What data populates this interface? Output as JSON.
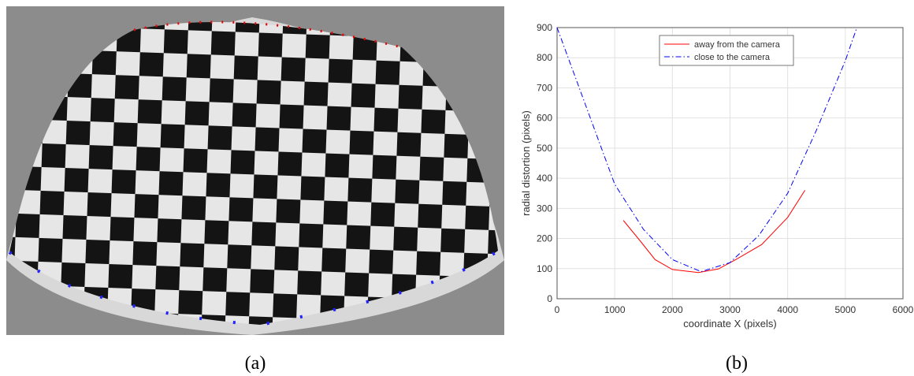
{
  "captions": [
    "(a)",
    "(b)"
  ],
  "chart_data": {
    "type": "line",
    "x_label": "coordinate X (pixels)",
    "y_label": "radial distortion (pixels)",
    "xlim": [
      0,
      6000
    ],
    "xticks": [
      0,
      1000,
      2000,
      3000,
      4000,
      5000,
      6000
    ],
    "ylim": [
      0,
      900
    ],
    "yticks": [
      0,
      100,
      200,
      300,
      400,
      500,
      600,
      700,
      800,
      900
    ],
    "grid": true,
    "legend": "top",
    "series": [
      {
        "name": "away from the camera",
        "color": "#ff0000",
        "style": "solid",
        "x": [
          1150,
          1450,
          1700,
          2000,
          2450,
          2800,
          3100,
          3550,
          4000,
          4300
        ],
        "values": [
          260,
          190,
          130,
          97,
          87,
          99,
          130,
          180,
          270,
          360
        ]
      },
      {
        "name": "close to the camera",
        "color": "#0000ff",
        "style": "dashdot",
        "x": [
          0,
          500,
          1000,
          1500,
          2000,
          2500,
          3000,
          3500,
          4000,
          4500,
          5000,
          5200
        ],
        "values": [
          900,
          640,
          380,
          230,
          130,
          90,
          120,
          210,
          350,
          560,
          790,
          900
        ]
      }
    ]
  }
}
